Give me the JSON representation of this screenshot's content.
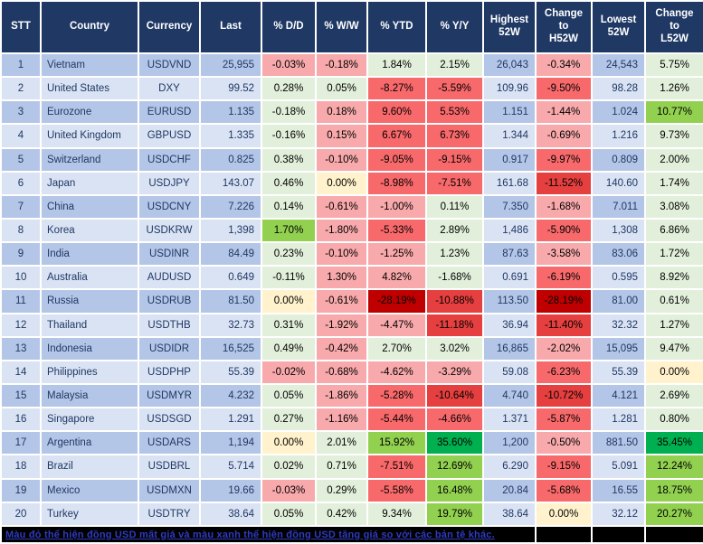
{
  "header": {
    "columns": [
      "STT",
      "Country",
      "Currency",
      "Last",
      "% D/D",
      "% W/W",
      "% YTD",
      "% Y/Y",
      "Highest\n52W",
      "Change\nto\nH52W",
      "Lowest\n52W",
      "Change\nto\nL52W"
    ]
  },
  "colors": {
    "header_bg": "#1F3864",
    "row_odd": "#B4C6E7",
    "row_even": "#DAE3F3",
    "g1": "#E2EFDA",
    "g2": "#92D050",
    "g3": "#00B050",
    "y": "#FFF2CC",
    "r1": "#F8A9AB",
    "r2": "#F8696B",
    "r3": "#E5403F",
    "r4": "#C00000",
    "footer_bg": "#000000",
    "footer_text": "#2F3BC0"
  },
  "rows": [
    {
      "stt": "1",
      "country": "Vietnam",
      "currency": "USDVND",
      "last": "25,955",
      "dd": "-0.03%",
      "dd_c": "r1",
      "ww": "-0.18%",
      "ww_c": "r1",
      "ytd": "1.84%",
      "ytd_c": "g1",
      "yy": "2.15%",
      "yy_c": "g1",
      "high": "26,043",
      "hchg": "-0.34%",
      "hchg_c": "r1",
      "low": "24,543",
      "lchg": "5.75%",
      "lchg_c": "g1"
    },
    {
      "stt": "2",
      "country": "United States",
      "currency": "DXY",
      "last": "99.52",
      "dd": "0.28%",
      "dd_c": "g1",
      "ww": "0.05%",
      "ww_c": "g1",
      "ytd": "-8.27%",
      "ytd_c": "r2",
      "yy": "-5.59%",
      "yy_c": "r2",
      "high": "109.96",
      "hchg": "-9.50%",
      "hchg_c": "r2",
      "low": "98.28",
      "lchg": "1.26%",
      "lchg_c": "g1"
    },
    {
      "stt": "3",
      "country": "Eurozone",
      "currency": "EURUSD",
      "last": "1.135",
      "dd": "-0.18%",
      "dd_c": "g1",
      "ww": "0.18%",
      "ww_c": "r1",
      "ytd": "9.60%",
      "ytd_c": "r2",
      "yy": "5.53%",
      "yy_c": "r2",
      "high": "1.151",
      "hchg": "-1.44%",
      "hchg_c": "r1",
      "low": "1.024",
      "lchg": "10.77%",
      "lchg_c": "g2"
    },
    {
      "stt": "4",
      "country": "United Kingdom",
      "currency": "GBPUSD",
      "last": "1.335",
      "dd": "-0.16%",
      "dd_c": "g1",
      "ww": "0.15%",
      "ww_c": "r1",
      "ytd": "6.67%",
      "ytd_c": "r2",
      "yy": "6.73%",
      "yy_c": "r2",
      "high": "1.344",
      "hchg": "-0.69%",
      "hchg_c": "r1",
      "low": "1.216",
      "lchg": "9.73%",
      "lchg_c": "g1"
    },
    {
      "stt": "5",
      "country": "Switzerland",
      "currency": "USDCHF",
      "last": "0.825",
      "dd": "0.38%",
      "dd_c": "g1",
      "ww": "-0.10%",
      "ww_c": "r1",
      "ytd": "-9.05%",
      "ytd_c": "r2",
      "yy": "-9.15%",
      "yy_c": "r2",
      "high": "0.917",
      "hchg": "-9.97%",
      "hchg_c": "r2",
      "low": "0.809",
      "lchg": "2.00%",
      "lchg_c": "g1"
    },
    {
      "stt": "6",
      "country": "Japan",
      "currency": "USDJPY",
      "last": "143.07",
      "dd": "0.46%",
      "dd_c": "g1",
      "ww": "0.00%",
      "ww_c": "y",
      "ytd": "-8.98%",
      "ytd_c": "r2",
      "yy": "-7.51%",
      "yy_c": "r2",
      "high": "161.68",
      "hchg": "-11.52%",
      "hchg_c": "r3",
      "low": "140.60",
      "lchg": "1.74%",
      "lchg_c": "g1"
    },
    {
      "stt": "7",
      "country": "China",
      "currency": "USDCNY",
      "last": "7.226",
      "dd": "0.14%",
      "dd_c": "g1",
      "ww": "-0.61%",
      "ww_c": "r1",
      "ytd": "-1.00%",
      "ytd_c": "r1",
      "yy": "0.11%",
      "yy_c": "g1",
      "high": "7.350",
      "hchg": "-1.68%",
      "hchg_c": "r1",
      "low": "7.011",
      "lchg": "3.08%",
      "lchg_c": "g1"
    },
    {
      "stt": "8",
      "country": "Korea",
      "currency": "USDKRW",
      "last": "1,398",
      "dd": "1.70%",
      "dd_c": "g2",
      "ww": "-1.80%",
      "ww_c": "r1",
      "ytd": "-5.33%",
      "ytd_c": "r2",
      "yy": "2.89%",
      "yy_c": "g1",
      "high": "1,486",
      "hchg": "-5.90%",
      "hchg_c": "r2",
      "low": "1,308",
      "lchg": "6.86%",
      "lchg_c": "g1"
    },
    {
      "stt": "9",
      "country": "India",
      "currency": "USDINR",
      "last": "84.49",
      "dd": "0.23%",
      "dd_c": "g1",
      "ww": "-0.10%",
      "ww_c": "r1",
      "ytd": "-1.25%",
      "ytd_c": "r1",
      "yy": "1.23%",
      "yy_c": "g1",
      "high": "87.63",
      "hchg": "-3.58%",
      "hchg_c": "r1",
      "low": "83.06",
      "lchg": "1.72%",
      "lchg_c": "g1"
    },
    {
      "stt": "10",
      "country": "Australia",
      "currency": "AUDUSD",
      "last": "0.649",
      "dd": "-0.11%",
      "dd_c": "g1",
      "ww": "1.30%",
      "ww_c": "r1",
      "ytd": "4.82%",
      "ytd_c": "r1",
      "yy": "-1.68%",
      "yy_c": "g1",
      "high": "0.691",
      "hchg": "-6.19%",
      "hchg_c": "r2",
      "low": "0.595",
      "lchg": "8.92%",
      "lchg_c": "g1"
    },
    {
      "stt": "11",
      "country": "Russia",
      "currency": "USDRUB",
      "last": "81.50",
      "dd": "0.00%",
      "dd_c": "y",
      "ww": "-0.61%",
      "ww_c": "r1",
      "ytd": "-28.19%",
      "ytd_c": "r4",
      "yy": "-10.88%",
      "yy_c": "r3",
      "high": "113.50",
      "hchg": "-28.19%",
      "hchg_c": "r4",
      "low": "81.00",
      "lchg": "0.61%",
      "lchg_c": "g1"
    },
    {
      "stt": "12",
      "country": "Thailand",
      "currency": "USDTHB",
      "last": "32.73",
      "dd": "0.31%",
      "dd_c": "g1",
      "ww": "-1.92%",
      "ww_c": "r1",
      "ytd": "-4.47%",
      "ytd_c": "r1",
      "yy": "-11.18%",
      "yy_c": "r3",
      "high": "36.94",
      "hchg": "-11.40%",
      "hchg_c": "r3",
      "low": "32.32",
      "lchg": "1.27%",
      "lchg_c": "g1"
    },
    {
      "stt": "13",
      "country": "Indonesia",
      "currency": "USDIDR",
      "last": "16,525",
      "dd": "0.49%",
      "dd_c": "g1",
      "ww": "-0.42%",
      "ww_c": "r1",
      "ytd": "2.70%",
      "ytd_c": "g1",
      "yy": "3.02%",
      "yy_c": "g1",
      "high": "16,865",
      "hchg": "-2.02%",
      "hchg_c": "r1",
      "low": "15,095",
      "lchg": "9.47%",
      "lchg_c": "g1"
    },
    {
      "stt": "14",
      "country": "Philippines",
      "currency": "USDPHP",
      "last": "55.39",
      "dd": "-0.02%",
      "dd_c": "r1",
      "ww": "-0.68%",
      "ww_c": "r1",
      "ytd": "-4.62%",
      "ytd_c": "r1",
      "yy": "-3.29%",
      "yy_c": "r1",
      "high": "59.08",
      "hchg": "-6.23%",
      "hchg_c": "r2",
      "low": "55.39",
      "lchg": "0.00%",
      "lchg_c": "y"
    },
    {
      "stt": "15",
      "country": "Malaysia",
      "currency": "USDMYR",
      "last": "4.232",
      "dd": "0.05%",
      "dd_c": "g1",
      "ww": "-1.86%",
      "ww_c": "r1",
      "ytd": "-5.28%",
      "ytd_c": "r2",
      "yy": "-10.64%",
      "yy_c": "r3",
      "high": "4.740",
      "hchg": "-10.72%",
      "hchg_c": "r3",
      "low": "4.121",
      "lchg": "2.69%",
      "lchg_c": "g1"
    },
    {
      "stt": "16",
      "country": "Singapore",
      "currency": "USDSGD",
      "last": "1.291",
      "dd": "0.27%",
      "dd_c": "g1",
      "ww": "-1.16%",
      "ww_c": "r1",
      "ytd": "-5.44%",
      "ytd_c": "r2",
      "yy": "-4.66%",
      "yy_c": "r2",
      "high": "1.371",
      "hchg": "-5.87%",
      "hchg_c": "r2",
      "low": "1.281",
      "lchg": "0.80%",
      "lchg_c": "g1"
    },
    {
      "stt": "17",
      "country": "Argentina",
      "currency": "USDARS",
      "last": "1,194",
      "dd": "0.00%",
      "dd_c": "y",
      "ww": "2.01%",
      "ww_c": "g1",
      "ytd": "15.92%",
      "ytd_c": "g2",
      "yy": "35.60%",
      "yy_c": "g3",
      "high": "1,200",
      "hchg": "-0.50%",
      "hchg_c": "r1",
      "low": "881.50",
      "lchg": "35.45%",
      "lchg_c": "g3"
    },
    {
      "stt": "18",
      "country": "Brazil",
      "currency": "USDBRL",
      "last": "5.714",
      "dd": "0.02%",
      "dd_c": "g1",
      "ww": "0.71%",
      "ww_c": "g1",
      "ytd": "-7.51%",
      "ytd_c": "r2",
      "yy": "12.69%",
      "yy_c": "g2",
      "high": "6.290",
      "hchg": "-9.15%",
      "hchg_c": "r2",
      "low": "5.091",
      "lchg": "12.24%",
      "lchg_c": "g2"
    },
    {
      "stt": "19",
      "country": "Mexico",
      "currency": "USDMXN",
      "last": "19.66",
      "dd": "-0.03%",
      "dd_c": "r1",
      "ww": "0.29%",
      "ww_c": "g1",
      "ytd": "-5.58%",
      "ytd_c": "r2",
      "yy": "16.48%",
      "yy_c": "g2",
      "high": "20.84",
      "hchg": "-5.68%",
      "hchg_c": "r2",
      "low": "16.55",
      "lchg": "18.75%",
      "lchg_c": "g2"
    },
    {
      "stt": "20",
      "country": "Turkey",
      "currency": "USDTRY",
      "last": "38.64",
      "dd": "0.05%",
      "dd_c": "g1",
      "ww": "0.42%",
      "ww_c": "g1",
      "ytd": "9.34%",
      "ytd_c": "g1",
      "yy": "19.79%",
      "yy_c": "g2",
      "high": "38.64",
      "hchg": "0.00%",
      "hchg_c": "y",
      "low": "32.12",
      "lchg": "20.27%",
      "lchg_c": "g2"
    }
  ],
  "footer": {
    "note": "Màu đỏ thể hiện đồng USD mất giá và màu xanh thể hiện đồng USD tăng giá so với các bản tệ khác."
  }
}
